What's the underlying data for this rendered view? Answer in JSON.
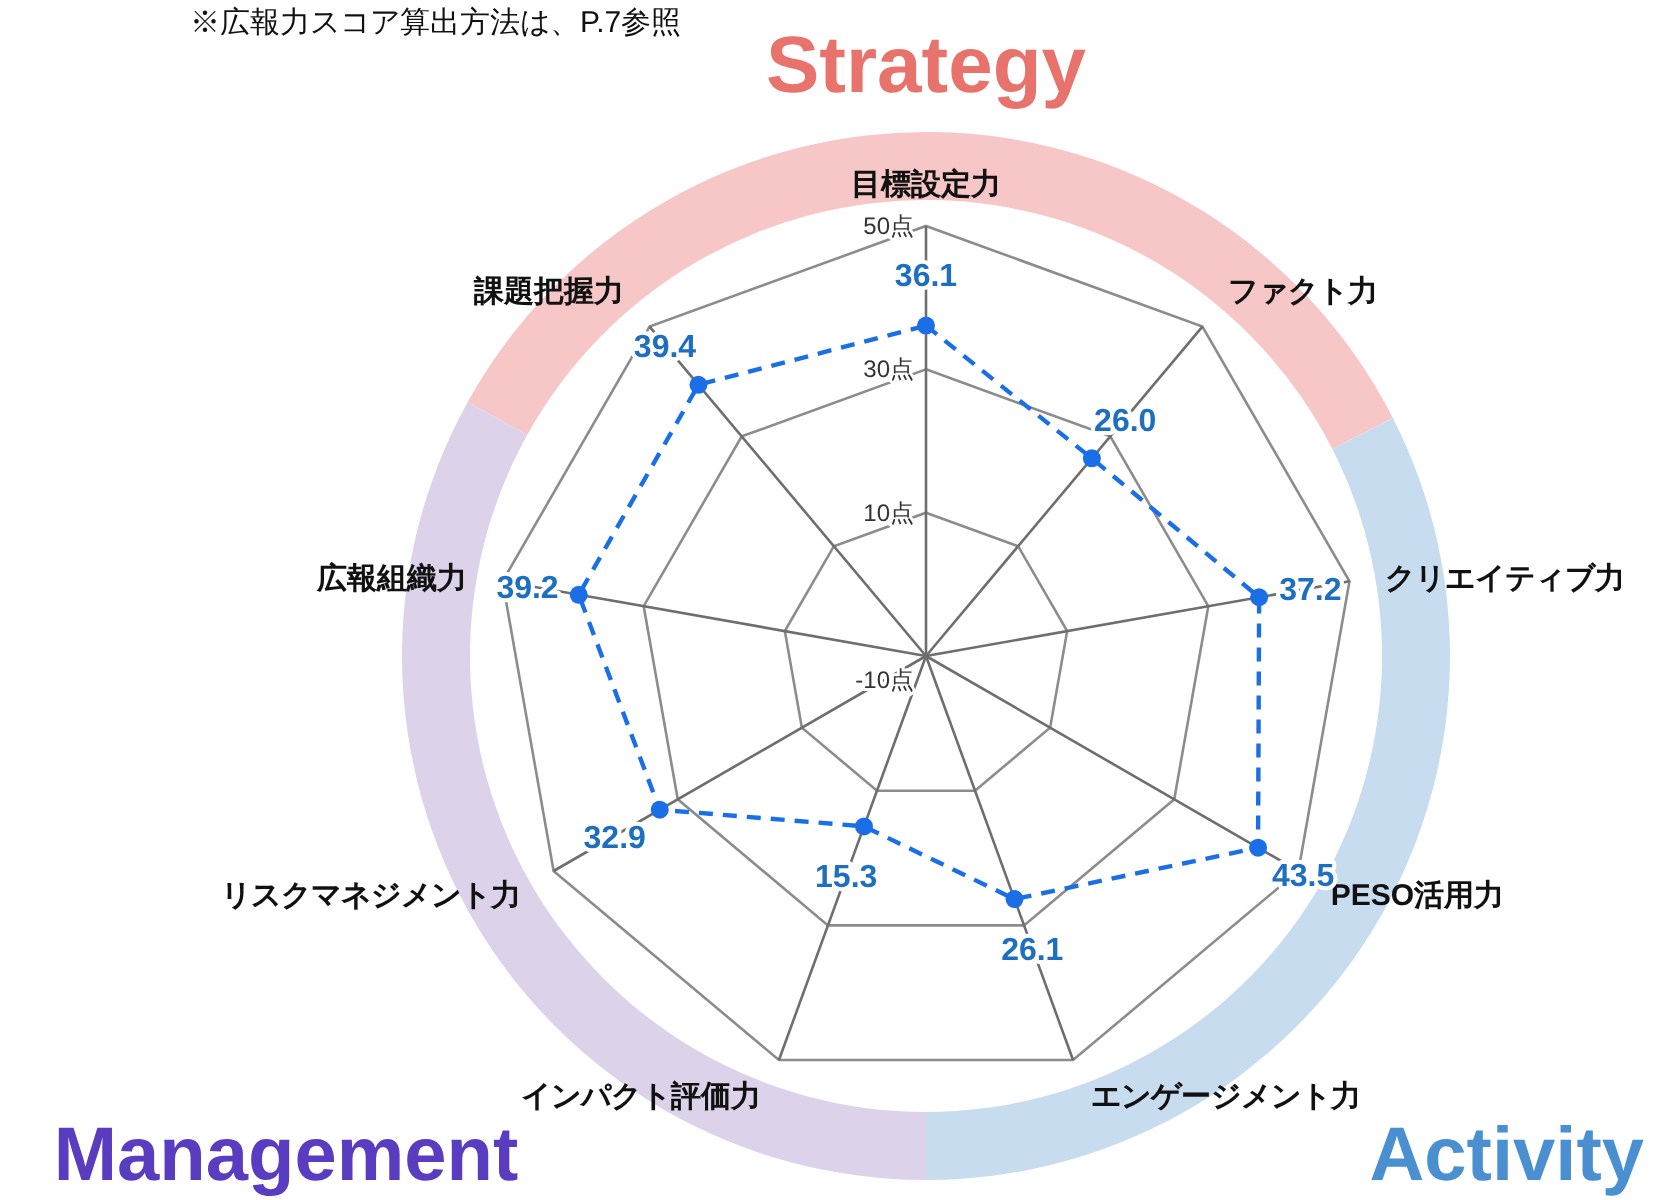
{
  "chart_data": {
    "type": "radar",
    "categories": [
      "目標設定力",
      "ファクト力",
      "クリエイティブ力",
      "PESO活用力",
      "エンゲージメント力",
      "インパクト評価力",
      "リスクマネジメント力",
      "広報組織力",
      "課題把握力"
    ],
    "series": [
      {
        "color": "#1a6fe6",
        "values": [
          36.1,
          26.0,
          37.2,
          43.5,
          26.1,
          15.3,
          32.9,
          39.2,
          39.4
        ],
        "value_labels": [
          "36.1",
          "26.0",
          "37.2",
          "43.5",
          "26.1",
          "15.3",
          "32.9",
          "39.2",
          "39.4"
        ]
      }
    ],
    "ylim": [
      -10,
      50
    ],
    "yticks": [
      {
        "value": -10,
        "label": "-10点"
      },
      {
        "value": 10,
        "label": "10点"
      },
      {
        "value": 30,
        "label": "30点"
      },
      {
        "value": 50,
        "label": "50点"
      }
    ],
    "grid": true,
    "marker": "circle",
    "line_style": "dashed",
    "annotations": [
      "※広報力スコア算出方法は、P.7参照",
      "Strategy",
      "Activity",
      "Management"
    ]
  }
}
